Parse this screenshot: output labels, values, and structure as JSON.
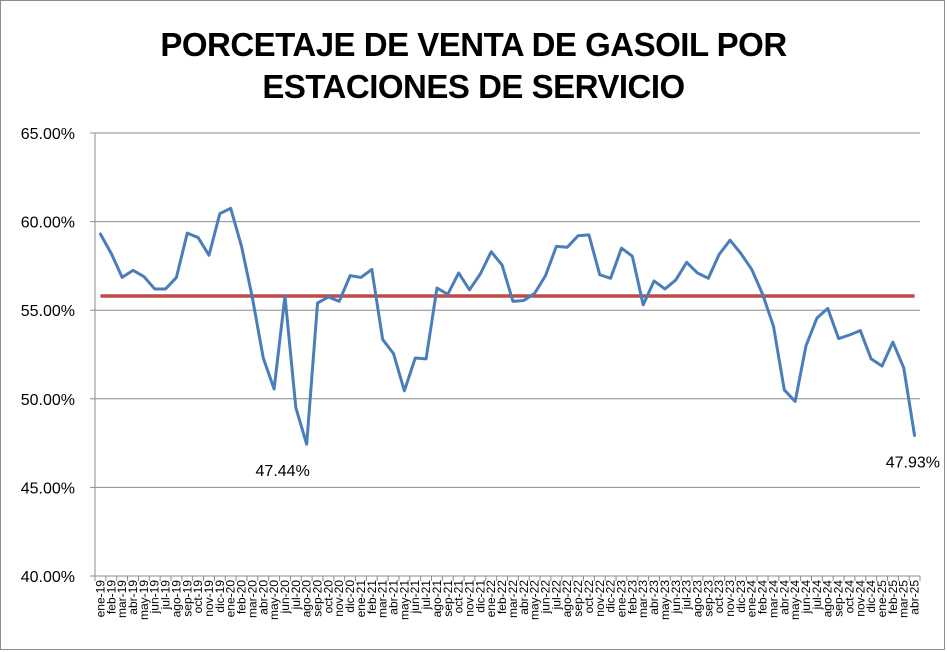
{
  "chart_data": {
    "type": "line",
    "title_lines": [
      "PORCETAJE DE VENTA DE GASOIL POR",
      "ESTACIONES DE SERVICIO"
    ],
    "xlabel": "",
    "ylabel": "",
    "ylim": [
      0.4,
      0.65
    ],
    "y_ticks": [
      0.4,
      0.45,
      0.5,
      0.55,
      0.6,
      0.65
    ],
    "y_tick_labels": [
      "40.00%",
      "45.00%",
      "50.00%",
      "55.00%",
      "60.00%",
      "65.00%"
    ],
    "grid": "horizontal",
    "categories": [
      "ene-19",
      "feb-19",
      "mar-19",
      "abr-19",
      "may-19",
      "jun-19",
      "jul-19",
      "ago-19",
      "sep-19",
      "oct-19",
      "nov-19",
      "dic-19",
      "ene-20",
      "feb-20",
      "mar-20",
      "abr-20",
      "may-20",
      "jun-20",
      "jul-20",
      "ago-20",
      "sep-20",
      "oct-20",
      "nov-20",
      "dic-20",
      "ene-21",
      "feb-21",
      "mar-21",
      "abr-21",
      "may-21",
      "jun-21",
      "jul-21",
      "ago-21",
      "sep-21",
      "oct-21",
      "nov-21",
      "dic-21",
      "ene-22",
      "feb-22",
      "mar-22",
      "abr-22",
      "may-22",
      "jun-22",
      "jul-22",
      "ago-22",
      "sep-22",
      "oct-22",
      "nov-22",
      "dic-22",
      "ene-23",
      "feb-23",
      "mar-23",
      "abr-23",
      "may-23",
      "jun-23",
      "jul-23",
      "ago-23",
      "sep-23",
      "oct-23",
      "nov-23",
      "dic-23",
      "ene-24",
      "feb-24",
      "mar-24",
      "abr-24",
      "may-24",
      "jun-24",
      "jul-24",
      "ago-24",
      "sep-24",
      "oct-24",
      "nov-24",
      "dic-24",
      "ene-25",
      "feb-25",
      "mar-25",
      "abr-25"
    ],
    "series": [
      {
        "color": "#4a7ebb",
        "values": [
          0.593,
          0.582,
          0.5685,
          0.5725,
          0.569,
          0.562,
          0.562,
          0.5685,
          0.5935,
          0.591,
          0.581,
          0.6045,
          0.6075,
          0.586,
          0.557,
          0.523,
          0.5055,
          0.558,
          0.495,
          0.4744,
          0.554,
          0.5575,
          0.555,
          0.5695,
          0.5685,
          0.573,
          0.5335,
          0.5255,
          0.5045,
          0.523,
          0.5225,
          0.5625,
          0.559,
          0.571,
          0.5615,
          0.5705,
          0.583,
          0.5755,
          0.555,
          0.5555,
          0.5595,
          0.5695,
          0.586,
          0.5855,
          0.592,
          0.5925,
          0.57,
          0.568,
          0.585,
          0.5805,
          0.553,
          0.5665,
          0.562,
          0.567,
          0.577,
          0.571,
          0.568,
          0.5815,
          0.5895,
          0.582,
          0.573,
          0.559,
          0.541,
          0.505,
          0.4985,
          0.53,
          0.5455,
          0.551,
          0.534,
          0.536,
          0.5385,
          0.5225,
          0.5185,
          0.532,
          0.5175,
          0.4793
        ]
      },
      {
        "color": "#be4b48",
        "kind": "reference-line",
        "value": 0.558
      }
    ],
    "annotations": [
      {
        "text": "47.44%",
        "category": "ago-20",
        "value": 0.4744
      },
      {
        "text": "47.93%",
        "category": "abr-25",
        "value": 0.4793
      }
    ]
  }
}
